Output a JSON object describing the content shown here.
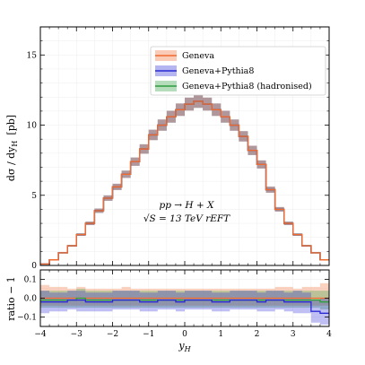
{
  "chart_data": [
    {
      "type": "line",
      "panel": "main",
      "step": true,
      "x_edges": [
        -4.0,
        -3.75,
        -3.5,
        -3.25,
        -3.0,
        -2.75,
        -2.5,
        -2.25,
        -2.0,
        -1.75,
        -1.5,
        -1.25,
        -1.0,
        -0.75,
        -0.5,
        -0.25,
        0.0,
        0.25,
        0.5,
        0.75,
        1.0,
        1.25,
        1.5,
        1.75,
        2.0,
        2.25,
        2.5,
        2.75,
        3.0,
        3.25,
        3.5,
        3.75,
        4.0
      ],
      "series": [
        {
          "name": "Geneva",
          "color": "#f26b2e",
          "values": [
            0.1,
            0.4,
            0.9,
            1.4,
            2.2,
            3.0,
            3.9,
            4.8,
            5.6,
            6.5,
            7.4,
            8.3,
            9.3,
            10.0,
            10.6,
            11.1,
            11.5,
            11.7,
            11.5,
            11.1,
            10.6,
            10.0,
            9.2,
            8.2,
            7.2,
            5.4,
            4.0,
            3.0,
            2.2,
            1.4,
            0.9,
            0.4
          ]
        },
        {
          "name": "Geneva+Pythia8",
          "color": "#2b2bd6",
          "values": [
            0.1,
            0.4,
            0.9,
            1.4,
            2.2,
            3.0,
            3.9,
            4.8,
            5.6,
            6.5,
            7.4,
            8.3,
            9.3,
            10.0,
            10.6,
            11.1,
            11.5,
            11.7,
            11.5,
            11.1,
            10.6,
            10.0,
            9.2,
            8.2,
            7.2,
            5.4,
            4.0,
            3.0,
            2.2,
            1.4,
            0.9,
            0.4
          ]
        },
        {
          "name": "Geneva+Pythia8 (hadronised)",
          "color": "#2c9e3c",
          "values": [
            0.1,
            0.4,
            0.9,
            1.4,
            2.2,
            3.0,
            3.9,
            4.8,
            5.6,
            6.5,
            7.4,
            8.3,
            9.3,
            10.0,
            10.6,
            11.1,
            11.5,
            11.7,
            11.5,
            11.1,
            10.6,
            10.0,
            9.2,
            8.2,
            7.2,
            5.4,
            4.0,
            3.0,
            2.2,
            1.4,
            0.9,
            0.4
          ]
        }
      ],
      "band_relative_half_width": 0.04,
      "ylabel": "dσ / dy",
      "ylabel_sub": "H",
      "ylabel_unit": "[pb]",
      "xlim": [
        -4,
        4
      ],
      "ylim": [
        0,
        17
      ],
      "yticks": [
        0,
        5,
        10,
        15
      ],
      "legend": "top-center",
      "annotation_line1": "pp → H + X",
      "annotation_line2": "√S = 13 TeV   rEFT"
    },
    {
      "type": "line",
      "panel": "ratio",
      "step": true,
      "x_edges": [
        -4.0,
        -3.75,
        -3.5,
        -3.25,
        -3.0,
        -2.75,
        -2.5,
        -2.25,
        -2.0,
        -1.75,
        -1.5,
        -1.25,
        -1.0,
        -0.75,
        -0.5,
        -0.25,
        0.0,
        0.25,
        0.5,
        0.75,
        1.0,
        1.25,
        1.5,
        1.75,
        2.0,
        2.25,
        2.5,
        2.75,
        3.0,
        3.25,
        3.5,
        3.75,
        4.0
      ],
      "series": [
        {
          "name": "Geneva",
          "color": "#f26b2e",
          "values": [
            0,
            0,
            0,
            0,
            0,
            0,
            0,
            0,
            0,
            0,
            0,
            0,
            0,
            0,
            0,
            0,
            0,
            0,
            0,
            0,
            0,
            0,
            0,
            0,
            0,
            0,
            0,
            0,
            0,
            0,
            0,
            0
          ],
          "band_low": [
            -0.04,
            -0.04,
            -0.04,
            -0.04,
            -0.04,
            -0.04,
            -0.04,
            -0.04,
            -0.04,
            -0.04,
            -0.04,
            -0.04,
            -0.04,
            -0.04,
            -0.04,
            -0.04,
            -0.04,
            -0.04,
            -0.04,
            -0.04,
            -0.04,
            -0.04,
            -0.04,
            -0.04,
            -0.04,
            -0.04,
            -0.04,
            -0.04,
            -0.04,
            -0.04,
            -0.04,
            -0.04
          ],
          "band_high": [
            0.07,
            0.06,
            0.06,
            0.05,
            0.06,
            0.05,
            0.05,
            0.05,
            0.05,
            0.06,
            0.05,
            0.05,
            0.05,
            0.05,
            0.05,
            0.05,
            0.05,
            0.05,
            0.05,
            0.05,
            0.05,
            0.05,
            0.05,
            0.05,
            0.05,
            0.05,
            0.06,
            0.06,
            0.05,
            0.06,
            0.06,
            0.08
          ]
        },
        {
          "name": "Geneva+Pythia8",
          "color": "#2b2bd6",
          "values": [
            -0.02,
            -0.02,
            -0.02,
            -0.01,
            -0.01,
            -0.02,
            -0.02,
            -0.02,
            -0.01,
            -0.01,
            -0.01,
            -0.02,
            -0.02,
            -0.01,
            -0.01,
            -0.02,
            -0.01,
            -0.01,
            -0.01,
            -0.02,
            -0.02,
            -0.01,
            -0.01,
            -0.01,
            -0.02,
            -0.01,
            -0.01,
            -0.02,
            -0.02,
            -0.02,
            -0.07,
            -0.08
          ],
          "band_low": [
            -0.08,
            -0.07,
            -0.07,
            -0.06,
            -0.07,
            -0.07,
            -0.07,
            -0.07,
            -0.06,
            -0.06,
            -0.06,
            -0.07,
            -0.07,
            -0.06,
            -0.06,
            -0.07,
            -0.06,
            -0.06,
            -0.06,
            -0.07,
            -0.07,
            -0.06,
            -0.06,
            -0.06,
            -0.07,
            -0.07,
            -0.06,
            -0.07,
            -0.08,
            -0.08,
            -0.13,
            -0.14
          ],
          "band_high": [
            0.04,
            0.03,
            0.03,
            0.04,
            0.04,
            0.03,
            0.03,
            0.03,
            0.04,
            0.04,
            0.04,
            0.03,
            0.03,
            0.04,
            0.04,
            0.03,
            0.04,
            0.04,
            0.04,
            0.03,
            0.03,
            0.04,
            0.04,
            0.04,
            0.03,
            0.04,
            0.04,
            0.03,
            0.04,
            0.03,
            -0.01,
            0.0
          ]
        },
        {
          "name": "Geneva+Pythia8 (hadronised)",
          "color": "#2c9e3c",
          "values": [
            -0.01,
            -0.01,
            -0.01,
            -0.01,
            0.0,
            -0.01,
            -0.01,
            -0.01,
            -0.01,
            -0.01,
            -0.01,
            -0.01,
            -0.01,
            -0.01,
            -0.01,
            -0.01,
            -0.01,
            -0.01,
            -0.01,
            -0.01,
            -0.01,
            -0.01,
            -0.01,
            -0.01,
            -0.01,
            -0.01,
            -0.01,
            -0.01,
            -0.01,
            -0.01,
            -0.01,
            -0.02
          ],
          "band_low": [
            -0.05,
            -0.05,
            -0.05,
            -0.05,
            -0.05,
            -0.05,
            -0.05,
            -0.05,
            -0.05,
            -0.05,
            -0.05,
            -0.05,
            -0.05,
            -0.05,
            -0.05,
            -0.05,
            -0.05,
            -0.05,
            -0.05,
            -0.05,
            -0.05,
            -0.05,
            -0.05,
            -0.05,
            -0.05,
            -0.05,
            -0.05,
            -0.05,
            -0.05,
            -0.05,
            -0.05,
            -0.06
          ],
          "band_high": [
            0.04,
            0.04,
            0.04,
            0.04,
            0.05,
            0.04,
            0.04,
            0.04,
            0.04,
            0.04,
            0.04,
            0.04,
            0.04,
            0.04,
            0.04,
            0.04,
            0.04,
            0.04,
            0.04,
            0.04,
            0.04,
            0.04,
            0.04,
            0.04,
            0.04,
            0.04,
            0.04,
            0.04,
            0.04,
            0.04,
            0.04,
            0.04
          ]
        }
      ],
      "ylabel": "ratio − 1",
      "xlabel": "y",
      "xlabel_sub": "H",
      "xlim": [
        -4,
        4
      ],
      "ylim": [
        -0.15,
        0.15
      ],
      "xticks": [
        -4,
        -3,
        -2,
        -1,
        0,
        1,
        2,
        3,
        4
      ],
      "yticks": [
        -0.1,
        0.0,
        0.1
      ],
      "ytick_labels": [
        "−0.1",
        "0.0",
        "0.1"
      ],
      "xtick_labels": [
        "−4",
        "−3",
        "−2",
        "−1",
        "0",
        "1",
        "2",
        "3",
        "4"
      ],
      "grid": true
    }
  ]
}
